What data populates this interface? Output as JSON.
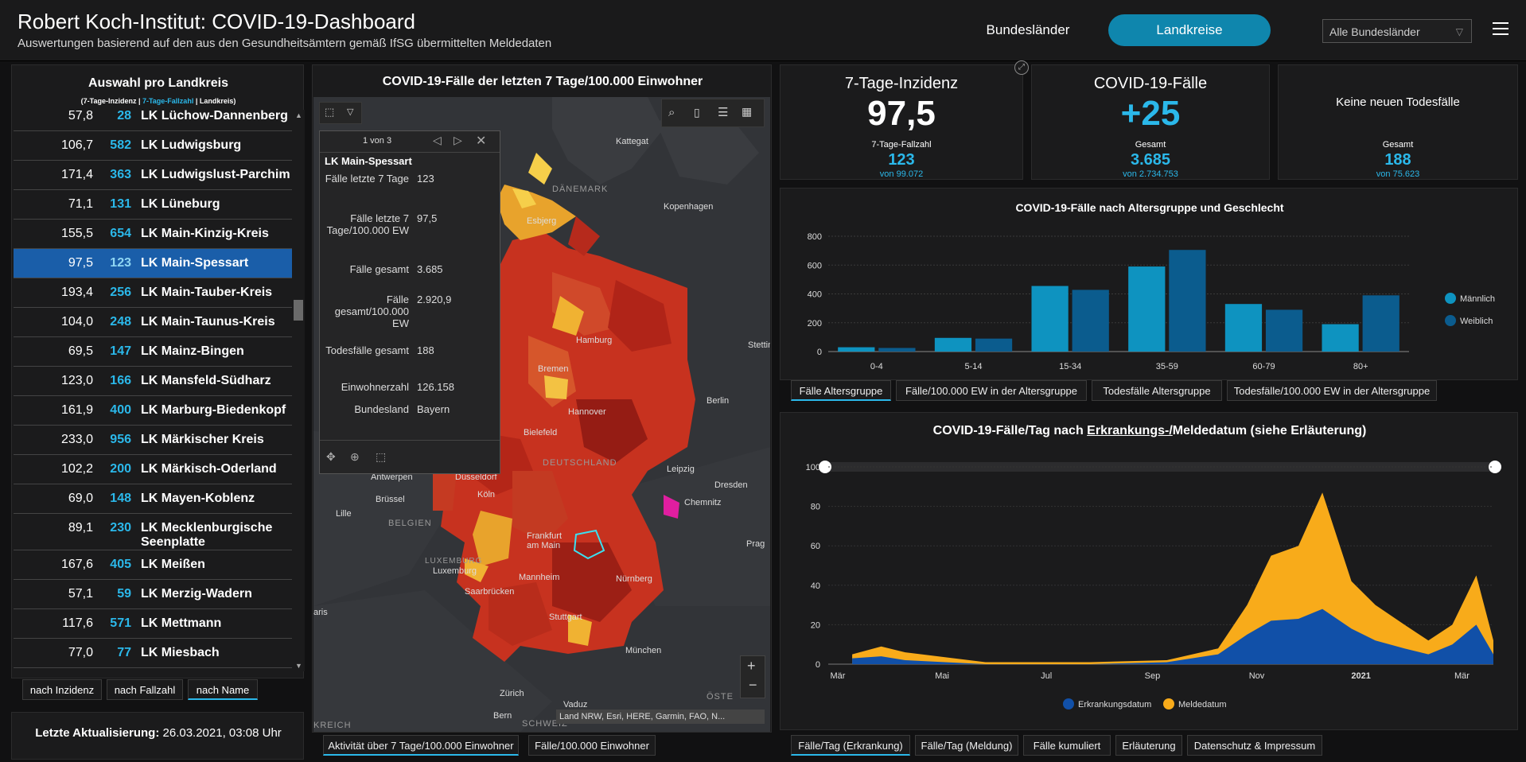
{
  "header": {
    "title": "Robert Koch-Institut: COVID-19-Dashboard",
    "subtitle": "Auswertungen basierend auf den aus den Gesundheitsämtern gemäß IfSG übermittelten Meldedaten",
    "btn_states": "Bundesländer",
    "btn_districts": "Landkreise",
    "state_select": "Alle Bundesländer"
  },
  "list": {
    "title": "Auswahl pro Landkreis",
    "subtitle_a": "(7-Tage-Inzidenz | ",
    "subtitle_b": "7-Tage-Fallzahl",
    "subtitle_c": " | Landkreis)",
    "rows": [
      {
        "inz": "57,8",
        "fz": "28",
        "name": "LK Lüchow-Dannenberg"
      },
      {
        "inz": "106,7",
        "fz": "582",
        "name": "LK Ludwigsburg"
      },
      {
        "inz": "171,4",
        "fz": "363",
        "name": "LK Ludwigslust-Parchim"
      },
      {
        "inz": "71,1",
        "fz": "131",
        "name": "LK Lüneburg"
      },
      {
        "inz": "155,5",
        "fz": "654",
        "name": "LK Main-Kinzig-Kreis"
      },
      {
        "inz": "97,5",
        "fz": "123",
        "name": "LK Main-Spessart"
      },
      {
        "inz": "193,4",
        "fz": "256",
        "name": "LK Main-Tauber-Kreis"
      },
      {
        "inz": "104,0",
        "fz": "248",
        "name": "LK Main-Taunus-Kreis"
      },
      {
        "inz": "69,5",
        "fz": "147",
        "name": "LK Mainz-Bingen"
      },
      {
        "inz": "123,0",
        "fz": "166",
        "name": "LK Mansfeld-Südharz"
      },
      {
        "inz": "161,9",
        "fz": "400",
        "name": "LK Marburg-Biedenkopf"
      },
      {
        "inz": "233,0",
        "fz": "956",
        "name": "LK Märkischer Kreis"
      },
      {
        "inz": "102,2",
        "fz": "200",
        "name": "LK Märkisch-Oderland"
      },
      {
        "inz": "69,0",
        "fz": "148",
        "name": "LK Mayen-Koblenz"
      },
      {
        "inz": "89,1",
        "fz": "230",
        "name": "LK Mecklenburgische Seenplatte"
      },
      {
        "inz": "167,6",
        "fz": "405",
        "name": "LK Meißen"
      },
      {
        "inz": "57,1",
        "fz": "59",
        "name": "LK Merzig-Wadern"
      },
      {
        "inz": "117,6",
        "fz": "571",
        "name": "LK Mettmann"
      },
      {
        "inz": "77,0",
        "fz": "77",
        "name": "LK Miesbach"
      }
    ],
    "selected_index": 5,
    "sort_inz": "nach Inzidenz",
    "sort_fz": "nach Fallzahl",
    "sort_name": "nach Name",
    "update_label": "Letzte Aktualisierung:",
    "update_value": " 26.03.2021, 03:08 Uhr"
  },
  "map": {
    "title": "COVID-19-Fälle der letzten 7 Tage/100.000 Einwohner",
    "popup": {
      "pager": "1 von 3",
      "title": "LK Main-Spessart",
      "rows": [
        {
          "k": "Fälle letzte 7 Tage",
          "v": "123"
        },
        {
          "k": "Fälle letzte 7 Tage/100.000 EW",
          "v": "97,5"
        },
        {
          "k": "Fälle gesamt",
          "v": "3.685"
        },
        {
          "k": "Fälle gesamt/100.000 EW",
          "v": "2.920,9"
        },
        {
          "k": "Todesfälle gesamt",
          "v": "188"
        },
        {
          "k": "Einwohnerzahl",
          "v": "126.158"
        },
        {
          "k": "Bundesland",
          "v": "Bayern"
        }
      ]
    },
    "labels": [
      "Kattegat",
      "DÄNEMARK",
      "Kopenhagen",
      "Esbjerg",
      "Hamburg",
      "Bremen",
      "Hannover",
      "Berlin",
      "Stettin",
      "Bielefeld",
      "DEUTSCHLAND",
      "Leipzig",
      "Dresden",
      "Düsseldorf",
      "Antwerpen",
      "Brüssel",
      "Köln",
      "Chemnitz",
      "Lille",
      "BELGIEN",
      "Frankfurt am Main",
      "Prag",
      "LUXEMBURG",
      "Luxemburg",
      "Mannheim",
      "Nürnberg",
      "Saarbrücken",
      "aris",
      "Stuttgart",
      "München",
      "Zürich",
      "Vaduz",
      "ÖSTE",
      "Bern",
      "SCHWEIZ",
      "KREICH"
    ],
    "attribution": "Land NRW, Esri, HERE, Garmin, FAO, N...",
    "tab_activity": "Aktivität über 7 Tage/100.000 Einwohner",
    "tab_cases": "Fälle/100.000 Einwohner"
  },
  "kpi": {
    "incidence_title": "7-Tage-Inzidenz",
    "incidence_value": "97,5",
    "incidence_sub": "7-Tage-Fallzahl",
    "incidence_subval": "123",
    "incidence_of": "von 99.072",
    "cases_title": "COVID-19-Fälle",
    "cases_value": "+25",
    "cases_sub": "Gesamt",
    "cases_subval": "3.685",
    "cases_of": "von 2.734.753",
    "deaths_title": "Keine neuen Todesfälle",
    "deaths_sub": "Gesamt",
    "deaths_subval": "188",
    "deaths_of": "von 75.623"
  },
  "age_chart": {
    "title": "COVID-19-Fälle nach Altersgruppe und Geschlecht",
    "tabs": [
      "Fälle Altersgruppe",
      "Fälle/100.000 EW in der Altersgruppe",
      "Todesfälle Altersgruppe",
      "Todesfälle/100.000 EW in der Altersgruppe"
    ],
    "colors": {
      "male": "#0e93c0",
      "female": "#0b5c8e"
    }
  },
  "time_chart": {
    "title_a": "COVID-19-Fälle/Tag nach ",
    "title_b": "Erkrankungs-/",
    "title_c": "Meldedatum (siehe Erläuterung)",
    "tabs": [
      "Fälle/Tag (Erkrankung)",
      "Fälle/Tag (Meldung)",
      "Fälle kumuliert",
      "Erläuterung",
      "Datenschutz & Impressum"
    ],
    "colors": {
      "onset": "#1150a8",
      "report": "#f8ab1a"
    }
  },
  "chart_data": [
    {
      "type": "bar",
      "title": "COVID-19-Fälle nach Altersgruppe und Geschlecht",
      "categories": [
        "0-4",
        "5-14",
        "15-34",
        "35-59",
        "60-79",
        "80+"
      ],
      "series": [
        {
          "name": "Männlich",
          "values": [
            30,
            95,
            455,
            590,
            330,
            190
          ]
        },
        {
          "name": "Weiblich",
          "values": [
            25,
            90,
            428,
            705,
            290,
            390
          ]
        }
      ],
      "ylim": [
        0,
        800
      ],
      "yticks": [
        0,
        200,
        400,
        600,
        800
      ],
      "legend": "right"
    },
    {
      "type": "bar",
      "title": "COVID-19-Fälle/Tag nach Erkrankungs-/Meldedatum (siehe Erläuterung)",
      "x_range": [
        "2020-03-01",
        "2021-03-25"
      ],
      "xticks": [
        "Mär",
        "Mai",
        "Jul",
        "Sep",
        "Nov",
        "2021",
        "Mär"
      ],
      "ylim": [
        0,
        100
      ],
      "yticks": [
        0,
        20,
        40,
        60,
        80,
        100
      ],
      "series": [
        {
          "name": "Erkrankungsdatum",
          "points": [
            [
              "2020-03-15",
              3
            ],
            [
              "2020-04-01",
              4
            ],
            [
              "2020-04-15",
              2
            ],
            [
              "2020-06-01",
              0
            ],
            [
              "2020-08-01",
              0
            ],
            [
              "2020-09-15",
              1
            ],
            [
              "2020-10-15",
              5
            ],
            [
              "2020-11-01",
              15
            ],
            [
              "2020-11-15",
              22
            ],
            [
              "2020-12-01",
              23
            ],
            [
              "2020-12-15",
              28
            ],
            [
              "2021-01-01",
              18
            ],
            [
              "2021-01-15",
              12
            ],
            [
              "2021-02-01",
              8
            ],
            [
              "2021-02-15",
              5
            ],
            [
              "2021-03-01",
              10
            ],
            [
              "2021-03-15",
              20
            ],
            [
              "2021-03-25",
              5
            ]
          ]
        },
        {
          "name": "Meldedatum",
          "points": [
            [
              "2020-03-15",
              5
            ],
            [
              "2020-04-01",
              9
            ],
            [
              "2020-04-15",
              6
            ],
            [
              "2020-06-01",
              1
            ],
            [
              "2020-08-01",
              1
            ],
            [
              "2020-09-15",
              2
            ],
            [
              "2020-10-15",
              8
            ],
            [
              "2020-11-01",
              30
            ],
            [
              "2020-11-15",
              55
            ],
            [
              "2020-12-01",
              60
            ],
            [
              "2020-12-15",
              87
            ],
            [
              "2021-01-01",
              42
            ],
            [
              "2021-01-15",
              30
            ],
            [
              "2021-02-01",
              20
            ],
            [
              "2021-02-15",
              12
            ],
            [
              "2021-03-01",
              20
            ],
            [
              "2021-03-15",
              45
            ],
            [
              "2021-03-25",
              12
            ]
          ]
        }
      ],
      "legend": "bottom"
    }
  ]
}
